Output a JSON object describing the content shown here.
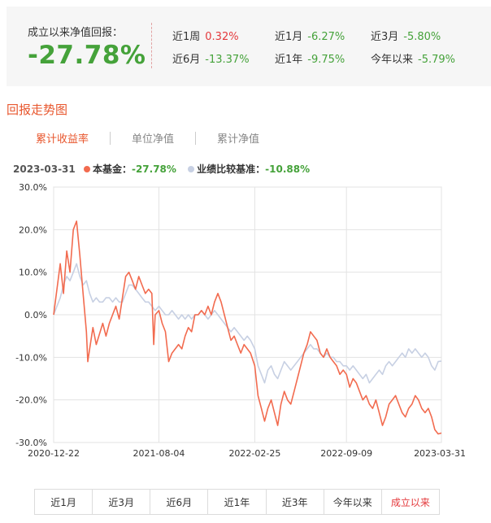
{
  "summary": {
    "since_label": "成立以来净值回报：",
    "since_value": "-27.78%",
    "stats": [
      {
        "label": "近1周",
        "value": "0.32%",
        "dir": "up"
      },
      {
        "label": "近1月",
        "value": "-6.27%",
        "dir": "down"
      },
      {
        "label": "近3月",
        "value": "-5.80%",
        "dir": "down"
      },
      {
        "label": "近6月",
        "value": "-13.37%",
        "dir": "down"
      },
      {
        "label": "近1年",
        "value": "-9.75%",
        "dir": "down"
      },
      {
        "label": "今年以来",
        "value": "-5.79%",
        "dir": "down"
      }
    ]
  },
  "section_title": "回报走势图",
  "tabs": [
    {
      "label": "累计收益率",
      "active": true
    },
    {
      "label": "单位净值",
      "active": false
    },
    {
      "label": "累计净值",
      "active": false
    }
  ],
  "legend": {
    "date": "2023-03-31",
    "fund_label": "本基金：",
    "fund_value": "-27.78%",
    "bench_label": "业绩比较基准：",
    "bench_value": "-10.88%"
  },
  "periods": [
    {
      "label": "近1月",
      "active": false
    },
    {
      "label": "近3月",
      "active": false
    },
    {
      "label": "近6月",
      "active": false
    },
    {
      "label": "近1年",
      "active": false
    },
    {
      "label": "近3年",
      "active": false
    },
    {
      "label": "今年以来",
      "active": false
    },
    {
      "label": "成立以来",
      "active": true
    }
  ],
  "colors": {
    "fund": "#f26b4f",
    "benchmark": "#c7d0e3",
    "positive": "#e4393c",
    "negative": "#45a23a",
    "accent": "#e8572e"
  },
  "chart_data": {
    "type": "line",
    "x_ticks": [
      "2020-12-22",
      "2021-08-04",
      "2022-02-25",
      "2022-09-09",
      "2023-03-31"
    ],
    "y_ticks": [
      "30.0%",
      "20.0%",
      "10.0%",
      "0.0%",
      "-10.0%",
      "-20.0%",
      "-30.0%"
    ],
    "ylim": [
      -30,
      30
    ],
    "x_unit": "date",
    "series": [
      {
        "name": "本基金",
        "color": "#f26b4f",
        "points": [
          [
            "2020-12-22",
            0.0
          ],
          [
            "2021-01-05",
            12.0
          ],
          [
            "2021-01-12",
            5.0
          ],
          [
            "2021-01-19",
            15.0
          ],
          [
            "2021-01-26",
            10.0
          ],
          [
            "2021-02-02",
            20.0
          ],
          [
            "2021-02-09",
            22.0
          ],
          [
            "2021-02-16",
            14.0
          ],
          [
            "2021-02-23",
            5.0
          ],
          [
            "2021-03-02",
            -4.0
          ],
          [
            "2021-03-05",
            -11.0
          ],
          [
            "2021-03-09",
            -8.0
          ],
          [
            "2021-03-16",
            -3.0
          ],
          [
            "2021-03-23",
            -7.0
          ],
          [
            "2021-04-06",
            -2.0
          ],
          [
            "2021-04-13",
            -5.0
          ],
          [
            "2021-04-20",
            -2.0
          ],
          [
            "2021-04-27",
            0.0
          ],
          [
            "2021-05-04",
            2.0
          ],
          [
            "2021-05-11",
            -1.0
          ],
          [
            "2021-05-18",
            4.0
          ],
          [
            "2021-05-25",
            9.0
          ],
          [
            "2021-06-01",
            10.0
          ],
          [
            "2021-06-08",
            8.0
          ],
          [
            "2021-06-15",
            6.0
          ],
          [
            "2021-06-22",
            9.0
          ],
          [
            "2021-06-29",
            7.0
          ],
          [
            "2021-07-06",
            5.0
          ],
          [
            "2021-07-13",
            6.0
          ],
          [
            "2021-07-20",
            5.0
          ],
          [
            "2021-07-24",
            -7.0
          ],
          [
            "2021-07-27",
            0.0
          ],
          [
            "2021-08-04",
            1.0
          ],
          [
            "2021-08-11",
            -2.0
          ],
          [
            "2021-08-18",
            -4.0
          ],
          [
            "2021-08-25",
            -11.0
          ],
          [
            "2021-09-01",
            -9.0
          ],
          [
            "2021-09-08",
            -8.0
          ],
          [
            "2021-09-15",
            -7.0
          ],
          [
            "2021-09-22",
            -8.0
          ],
          [
            "2021-09-29",
            -5.0
          ],
          [
            "2021-10-06",
            -3.0
          ],
          [
            "2021-10-13",
            -4.0
          ],
          [
            "2021-10-20",
            0.0
          ],
          [
            "2021-10-27",
            0.0
          ],
          [
            "2021-11-03",
            1.0
          ],
          [
            "2021-11-10",
            0.0
          ],
          [
            "2021-11-17",
            2.0
          ],
          [
            "2021-11-24",
            0.0
          ],
          [
            "2021-12-01",
            3.0
          ],
          [
            "2021-12-08",
            5.0
          ],
          [
            "2021-12-15",
            3.0
          ],
          [
            "2021-12-22",
            0.0
          ],
          [
            "2021-12-29",
            -3.0
          ],
          [
            "2022-01-05",
            -6.0
          ],
          [
            "2022-01-12",
            -5.0
          ],
          [
            "2022-01-19",
            -7.0
          ],
          [
            "2022-01-26",
            -9.0
          ],
          [
            "2022-02-02",
            -7.0
          ],
          [
            "2022-02-09",
            -8.0
          ],
          [
            "2022-02-16",
            -9.0
          ],
          [
            "2022-02-25",
            -12.0
          ],
          [
            "2022-03-04",
            -19.0
          ],
          [
            "2022-03-11",
            -22.0
          ],
          [
            "2022-03-18",
            -25.0
          ],
          [
            "2022-03-25",
            -22.0
          ],
          [
            "2022-04-01",
            -20.0
          ],
          [
            "2022-04-08",
            -23.0
          ],
          [
            "2022-04-15",
            -26.0
          ],
          [
            "2022-04-22",
            -21.0
          ],
          [
            "2022-04-29",
            -18.0
          ],
          [
            "2022-05-06",
            -20.0
          ],
          [
            "2022-05-13",
            -21.0
          ],
          [
            "2022-05-20",
            -18.0
          ],
          [
            "2022-05-27",
            -15.0
          ],
          [
            "2022-06-03",
            -12.0
          ],
          [
            "2022-06-10",
            -9.0
          ],
          [
            "2022-06-17",
            -7.0
          ],
          [
            "2022-06-24",
            -4.0
          ],
          [
            "2022-07-01",
            -5.0
          ],
          [
            "2022-07-08",
            -6.0
          ],
          [
            "2022-07-15",
            -9.0
          ],
          [
            "2022-07-22",
            -10.0
          ],
          [
            "2022-07-29",
            -8.0
          ],
          [
            "2022-08-05",
            -10.0
          ],
          [
            "2022-08-12",
            -11.0
          ],
          [
            "2022-08-19",
            -12.0
          ],
          [
            "2022-08-26",
            -14.0
          ],
          [
            "2022-09-02",
            -13.0
          ],
          [
            "2022-09-09",
            -14.0
          ],
          [
            "2022-09-16",
            -17.0
          ],
          [
            "2022-09-23",
            -15.0
          ],
          [
            "2022-09-30",
            -16.0
          ],
          [
            "2022-10-07",
            -18.0
          ],
          [
            "2022-10-14",
            -20.0
          ],
          [
            "2022-10-21",
            -19.0
          ],
          [
            "2022-10-28",
            -21.0
          ],
          [
            "2022-11-04",
            -22.0
          ],
          [
            "2022-11-11",
            -20.0
          ],
          [
            "2022-11-18",
            -23.0
          ],
          [
            "2022-11-25",
            -26.0
          ],
          [
            "2022-12-02",
            -24.0
          ],
          [
            "2022-12-09",
            -21.0
          ],
          [
            "2022-12-16",
            -20.0
          ],
          [
            "2022-12-23",
            -19.0
          ],
          [
            "2022-12-30",
            -21.0
          ],
          [
            "2023-01-06",
            -23.0
          ],
          [
            "2023-01-13",
            -24.0
          ],
          [
            "2023-01-20",
            -22.0
          ],
          [
            "2023-01-27",
            -21.0
          ],
          [
            "2023-02-03",
            -19.0
          ],
          [
            "2023-02-10",
            -20.0
          ],
          [
            "2023-02-17",
            -22.0
          ],
          [
            "2023-02-24",
            -23.0
          ],
          [
            "2023-03-03",
            -22.0
          ],
          [
            "2023-03-10",
            -24.0
          ],
          [
            "2023-03-17",
            -27.0
          ],
          [
            "2023-03-24",
            -28.0
          ],
          [
            "2023-03-31",
            -27.78
          ]
        ]
      },
      {
        "name": "业绩比较基准",
        "color": "#c7d0e3",
        "points": [
          [
            "2020-12-22",
            0.0
          ],
          [
            "2021-01-05",
            4.0
          ],
          [
            "2021-01-12",
            7.0
          ],
          [
            "2021-01-19",
            9.0
          ],
          [
            "2021-01-26",
            8.0
          ],
          [
            "2021-02-02",
            10.0
          ],
          [
            "2021-02-09",
            12.0
          ],
          [
            "2021-02-16",
            9.0
          ],
          [
            "2021-02-23",
            7.0
          ],
          [
            "2021-03-02",
            8.0
          ],
          [
            "2021-03-09",
            5.0
          ],
          [
            "2021-03-16",
            3.0
          ],
          [
            "2021-03-23",
            4.0
          ],
          [
            "2021-03-30",
            3.0
          ],
          [
            "2021-04-06",
            3.0
          ],
          [
            "2021-04-13",
            4.0
          ],
          [
            "2021-04-20",
            4.0
          ],
          [
            "2021-04-27",
            3.0
          ],
          [
            "2021-05-04",
            4.0
          ],
          [
            "2021-05-11",
            3.0
          ],
          [
            "2021-05-18",
            3.0
          ],
          [
            "2021-05-25",
            5.0
          ],
          [
            "2021-06-01",
            7.0
          ],
          [
            "2021-06-08",
            7.0
          ],
          [
            "2021-06-15",
            6.0
          ],
          [
            "2021-06-22",
            5.0
          ],
          [
            "2021-06-29",
            4.0
          ],
          [
            "2021-07-06",
            3.0
          ],
          [
            "2021-07-13",
            3.0
          ],
          [
            "2021-07-20",
            2.0
          ],
          [
            "2021-07-27",
            1.0
          ],
          [
            "2021-08-04",
            2.0
          ],
          [
            "2021-08-11",
            1.0
          ],
          [
            "2021-08-18",
            0.0
          ],
          [
            "2021-08-25",
            0.0
          ],
          [
            "2021-09-01",
            1.0
          ],
          [
            "2021-09-08",
            0.0
          ],
          [
            "2021-09-15",
            -1.0
          ],
          [
            "2021-09-22",
            0.0
          ],
          [
            "2021-09-29",
            -1.0
          ],
          [
            "2021-10-06",
            0.0
          ],
          [
            "2021-10-13",
            -1.0
          ],
          [
            "2021-10-20",
            0.0
          ],
          [
            "2021-10-27",
            0.0
          ],
          [
            "2021-11-03",
            1.0
          ],
          [
            "2021-11-10",
            0.0
          ],
          [
            "2021-11-17",
            -1.0
          ],
          [
            "2021-11-24",
            0.0
          ],
          [
            "2021-12-01",
            1.0
          ],
          [
            "2021-12-08",
            0.0
          ],
          [
            "2021-12-15",
            -1.0
          ],
          [
            "2021-12-22",
            -2.0
          ],
          [
            "2021-12-29",
            -3.0
          ],
          [
            "2022-01-05",
            -4.0
          ],
          [
            "2022-01-12",
            -3.0
          ],
          [
            "2022-01-19",
            -4.0
          ],
          [
            "2022-01-26",
            -5.0
          ],
          [
            "2022-02-02",
            -6.0
          ],
          [
            "2022-02-09",
            -5.0
          ],
          [
            "2022-02-16",
            -6.0
          ],
          [
            "2022-02-25",
            -8.0
          ],
          [
            "2022-03-04",
            -12.0
          ],
          [
            "2022-03-11",
            -14.0
          ],
          [
            "2022-03-18",
            -16.0
          ],
          [
            "2022-03-25",
            -13.0
          ],
          [
            "2022-04-01",
            -12.0
          ],
          [
            "2022-04-08",
            -14.0
          ],
          [
            "2022-04-15",
            -15.0
          ],
          [
            "2022-04-22",
            -13.0
          ],
          [
            "2022-04-29",
            -11.0
          ],
          [
            "2022-05-06",
            -12.0
          ],
          [
            "2022-05-13",
            -13.0
          ],
          [
            "2022-05-20",
            -12.0
          ],
          [
            "2022-05-27",
            -11.0
          ],
          [
            "2022-06-03",
            -10.0
          ],
          [
            "2022-06-10",
            -9.0
          ],
          [
            "2022-06-17",
            -8.0
          ],
          [
            "2022-06-24",
            -7.0
          ],
          [
            "2022-07-01",
            -8.0
          ],
          [
            "2022-07-08",
            -8.0
          ],
          [
            "2022-07-15",
            -9.0
          ],
          [
            "2022-07-22",
            -10.0
          ],
          [
            "2022-07-29",
            -9.0
          ],
          [
            "2022-08-05",
            -10.0
          ],
          [
            "2022-08-12",
            -10.0
          ],
          [
            "2022-08-19",
            -11.0
          ],
          [
            "2022-08-26",
            -11.0
          ],
          [
            "2022-09-02",
            -12.0
          ],
          [
            "2022-09-09",
            -12.0
          ],
          [
            "2022-09-16",
            -13.0
          ],
          [
            "2022-09-23",
            -12.0
          ],
          [
            "2022-09-30",
            -13.0
          ],
          [
            "2022-10-07",
            -14.0
          ],
          [
            "2022-10-14",
            -15.0
          ],
          [
            "2022-10-21",
            -14.0
          ],
          [
            "2022-10-28",
            -16.0
          ],
          [
            "2022-11-04",
            -15.0
          ],
          [
            "2022-11-11",
            -14.0
          ],
          [
            "2022-11-18",
            -13.0
          ],
          [
            "2022-11-25",
            -14.0
          ],
          [
            "2022-12-02",
            -12.0
          ],
          [
            "2022-12-09",
            -11.0
          ],
          [
            "2022-12-16",
            -12.0
          ],
          [
            "2022-12-23",
            -11.0
          ],
          [
            "2022-12-30",
            -10.0
          ],
          [
            "2023-01-06",
            -9.0
          ],
          [
            "2023-01-13",
            -10.0
          ],
          [
            "2023-01-20",
            -8.0
          ],
          [
            "2023-01-27",
            -9.0
          ],
          [
            "2023-02-03",
            -8.0
          ],
          [
            "2023-02-10",
            -9.0
          ],
          [
            "2023-02-17",
            -10.0
          ],
          [
            "2023-02-24",
            -9.0
          ],
          [
            "2023-03-03",
            -10.0
          ],
          [
            "2023-03-10",
            -12.0
          ],
          [
            "2023-03-17",
            -13.0
          ],
          [
            "2023-03-24",
            -11.0
          ],
          [
            "2023-03-31",
            -10.88
          ]
        ]
      }
    ]
  }
}
